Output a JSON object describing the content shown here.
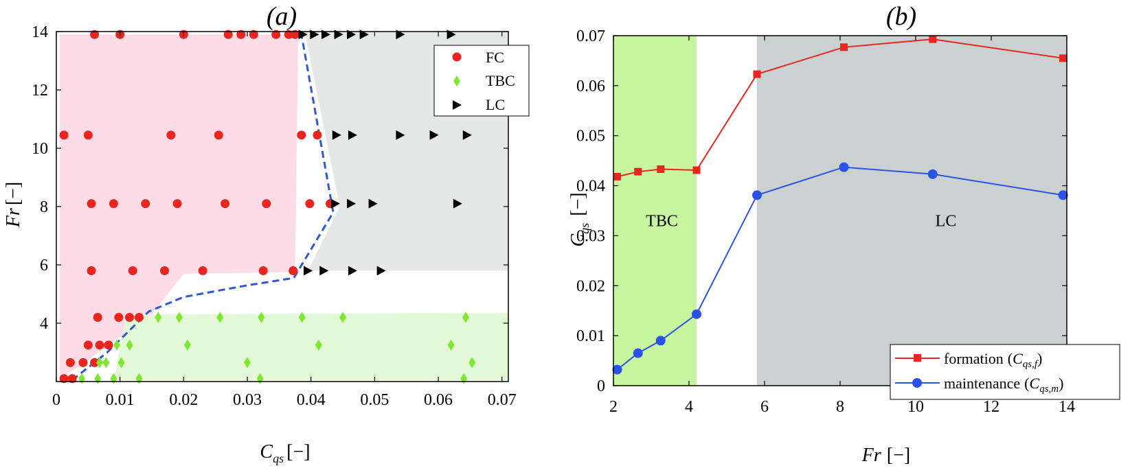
{
  "chart_data": [
    {
      "type": "scatter",
      "panel_label": "(a)",
      "xlabel": "C_qs [−]",
      "ylabel": "Fr [−]",
      "xlabel_main": "C",
      "xlabel_sub": "qs",
      "xlabel_unit": "[−]",
      "ylabel_main": "Fr",
      "ylabel_unit": "[−]",
      "xlim": [
        0,
        0.071
      ],
      "ylim": [
        2,
        14
      ],
      "xticks": [
        0,
        0.01,
        0.02,
        0.03,
        0.04,
        0.05,
        0.06,
        0.07
      ],
      "xtick_labels": [
        "0",
        "0.01",
        "0.02",
        "0.03",
        "0.04",
        "0.05",
        "0.06",
        "0.07"
      ],
      "yticks": [
        4,
        6,
        8,
        10,
        12,
        14
      ],
      "ytick_labels": [
        "4",
        "6",
        "8",
        "10",
        "12",
        "14"
      ],
      "legend_position": "top-right",
      "colors": {
        "FC": "#e8251f",
        "TBC": "#7ee830",
        "LC": "#000000",
        "boundary": "#2f57d6",
        "FC_region": "#fddce8",
        "TBC_region": "#e2f8d6",
        "LC_region": "#e6e8e8"
      },
      "regions": [
        {
          "name": "FC",
          "points": [
            [
              0.0005,
              2.05
            ],
            [
              0.015,
              4.3
            ],
            [
              0.02,
              5.7
            ],
            [
              0.0375,
              5.75
            ],
            [
              0.038,
              13.9
            ],
            [
              0.0005,
              13.9
            ]
          ]
        },
        {
          "name": "TBC",
          "points": [
            [
              0.011,
              4.3
            ],
            [
              0.071,
              4.35
            ],
            [
              0.071,
              2.05
            ],
            [
              0.009,
              2.05
            ]
          ]
        },
        {
          "name": "LC",
          "points": [
            [
              0.0395,
              5.8
            ],
            [
              0.071,
              5.8
            ],
            [
              0.071,
              14
            ],
            [
              0.039,
              14
            ],
            [
              0.0445,
              8
            ],
            [
              0.0395,
              5.8
            ]
          ]
        }
      ],
      "boundary": {
        "name": "FC/LC/TBC boundary",
        "x": [
          0.0025,
          0.008,
          0.0145,
          0.02,
          0.03,
          0.0373,
          0.0435,
          0.0385
        ],
        "y": [
          2.05,
          3.0,
          4.4,
          4.9,
          5.3,
          5.55,
          7.8,
          13.9
        ]
      },
      "series": [
        {
          "name": "FC",
          "marker": "circle",
          "x": [
            0.006,
            0.01,
            0.02,
            0.027,
            0.029,
            0.031,
            0.0345,
            0.0365,
            0.0375,
            0.0012,
            0.005,
            0.018,
            0.0255,
            0.0385,
            0.041,
            0.0055,
            0.009,
            0.014,
            0.019,
            0.0265,
            0.033,
            0.0398,
            0.043,
            0.0055,
            0.012,
            0.017,
            0.023,
            0.0325,
            0.0372,
            0.0065,
            0.0098,
            0.0115,
            0.013,
            0.005,
            0.0068,
            0.0082,
            0.0022,
            0.0042,
            0.006,
            0.0012,
            0.0025
          ],
          "y": [
            13.9,
            13.9,
            13.9,
            13.9,
            13.9,
            13.9,
            13.9,
            13.9,
            13.9,
            10.45,
            10.45,
            10.45,
            10.45,
            10.45,
            10.45,
            8.1,
            8.1,
            8.1,
            8.1,
            8.1,
            8.1,
            8.1,
            8.1,
            5.8,
            5.8,
            5.8,
            5.8,
            5.8,
            5.8,
            4.2,
            4.2,
            4.2,
            4.2,
            3.25,
            3.25,
            3.25,
            2.65,
            2.65,
            2.65,
            2.1,
            2.1
          ]
        },
        {
          "name": "TBC",
          "marker": "diamond",
          "x": [
            0.016,
            0.0193,
            0.0257,
            0.0322,
            0.0386,
            0.045,
            0.0643,
            0.0095,
            0.0115,
            0.0206,
            0.0412,
            0.062,
            0.0068,
            0.0078,
            0.0102,
            0.03,
            0.0653,
            0.004,
            0.0065,
            0.009,
            0.013,
            0.032,
            0.064
          ],
          "y": [
            4.2,
            4.2,
            4.2,
            4.2,
            4.2,
            4.2,
            4.2,
            3.25,
            3.25,
            3.25,
            3.25,
            3.25,
            2.65,
            2.65,
            2.65,
            2.65,
            2.65,
            2.1,
            2.1,
            2.1,
            2.1,
            2.1,
            2.1
          ]
        },
        {
          "name": "LC",
          "marker": "triangle-right",
          "x": [
            0.0387,
            0.0405,
            0.0423,
            0.0443,
            0.0463,
            0.0483,
            0.054,
            0.062,
            0.044,
            0.0465,
            0.054,
            0.0593,
            0.0645,
            0.0438,
            0.0463,
            0.0497,
            0.063,
            0.0395,
            0.042,
            0.0465,
            0.051
          ],
          "y": [
            13.9,
            13.9,
            13.9,
            13.9,
            13.9,
            13.9,
            13.9,
            13.9,
            10.45,
            10.45,
            10.45,
            10.45,
            10.45,
            8.1,
            8.1,
            8.1,
            8.1,
            5.8,
            5.8,
            5.8,
            5.8
          ]
        }
      ],
      "legend": [
        "FC",
        "TBC",
        "LC"
      ]
    },
    {
      "type": "line",
      "panel_label": "(b)",
      "xlabel": "Fr [−]",
      "ylabel": "C_qs [−]",
      "xlabel_main": "Fr",
      "xlabel_unit": "[−]",
      "ylabel_main": "C",
      "ylabel_sub": "qs",
      "ylabel_unit": "[−]",
      "xlim": [
        2,
        14
      ],
      "ylim": [
        0,
        0.07
      ],
      "xticks": [
        2,
        4,
        6,
        8,
        10,
        12,
        14
      ],
      "xtick_labels": [
        "2",
        "4",
        "6",
        "8",
        "10",
        "12",
        "14"
      ],
      "yticks": [
        0,
        0.01,
        0.02,
        0.03,
        0.04,
        0.05,
        0.06,
        0.07
      ],
      "ytick_labels": [
        "0",
        "0.01",
        "0.02",
        "0.03",
        "0.04",
        "0.05",
        "0.06",
        "0.07"
      ],
      "legend_position": "bottom-right",
      "colors": {
        "formation": "#e8251f",
        "maintenance": "#2b52e8",
        "TBC_band": "#c8f5a0",
        "LC_band": "#cbd0d0"
      },
      "bands": [
        {
          "name": "TBC",
          "label": "TBC",
          "x0": 2,
          "x1": 4.2
        },
        {
          "name": "LC",
          "label": "LC",
          "x0": 5.8,
          "x1": 14
        }
      ],
      "x": [
        2.1,
        2.65,
        3.25,
        4.2,
        5.8,
        8.1,
        10.45,
        13.9
      ],
      "series": [
        {
          "name": "formation",
          "label_text": "formation",
          "label_main": "C",
          "label_sub": "qs,f",
          "marker": "square",
          "values": [
            0.0418,
            0.0428,
            0.0433,
            0.0431,
            0.0623,
            0.0677,
            0.0693,
            0.0655
          ]
        },
        {
          "name": "maintenance",
          "label_text": "maintenance",
          "label_main": "C",
          "label_sub": "qs,m",
          "marker": "circle",
          "values": [
            0.0032,
            0.0065,
            0.009,
            0.0143,
            0.0381,
            0.0437,
            0.0423,
            0.0381
          ]
        }
      ]
    }
  ]
}
